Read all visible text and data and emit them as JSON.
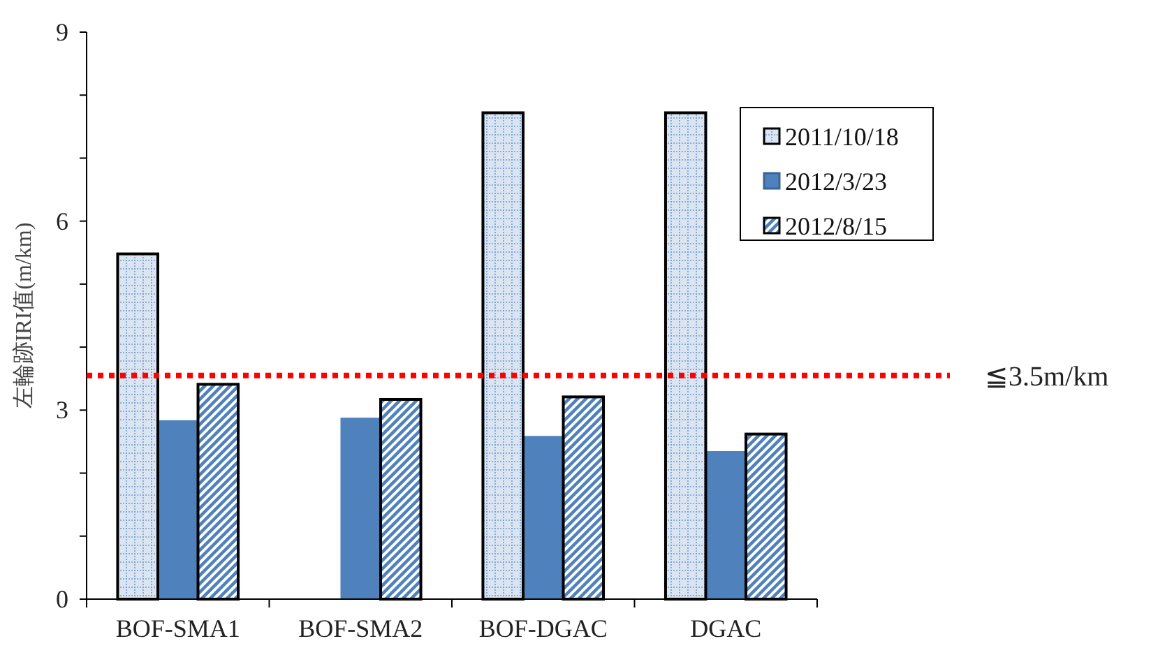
{
  "chart_data": {
    "type": "bar",
    "ylabel": "左輪跡IRI值(m/km)",
    "categories": [
      "BOF-SMA1",
      "BOF-SMA2",
      "BOF-DGAC",
      "DGAC"
    ],
    "series": [
      {
        "name": "2011/10/18",
        "color": "#dbe5f1",
        "values": [
          5.48,
          null,
          7.72,
          7.72
        ]
      },
      {
        "name": "2012/3/23",
        "color": "#4f81bd",
        "values": [
          2.84,
          2.88,
          2.59,
          2.35
        ]
      },
      {
        "name": "2012/8/15",
        "color": "#4f81bd",
        "values": [
          3.41,
          3.17,
          3.21,
          2.62
        ]
      }
    ],
    "ylim": [
      0,
      9
    ],
    "yticks": [
      0,
      {
        "value": 1,
        "label": null
      },
      {
        "value": 2,
        "label": null
      },
      3,
      {
        "value": 4,
        "label": null
      },
      {
        "value": 5,
        "label": null
      },
      6,
      {
        "value": 7,
        "label": null
      },
      {
        "value": 8,
        "label": null
      },
      9
    ],
    "ref_lines": [
      {
        "axis": "y",
        "value": 3.55,
        "label": "≦3.5m/km",
        "color": "#ff0000",
        "line_style": "dotted"
      }
    ],
    "legend": "top right",
    "grid": false
  }
}
